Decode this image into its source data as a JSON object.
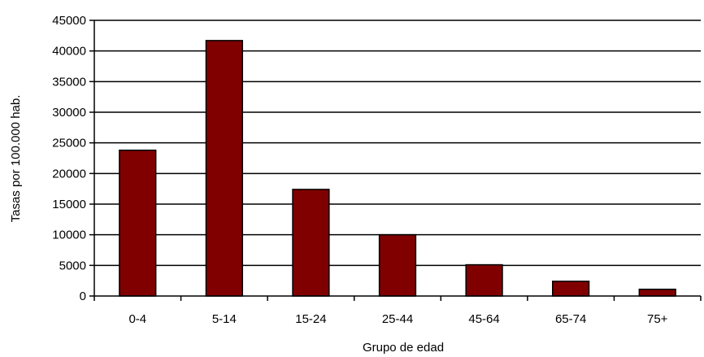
{
  "chart_data": {
    "type": "bar",
    "title": "",
    "xlabel": "Grupo de edad",
    "ylabel": "Tasas por 100.000 hab.",
    "categories": [
      "0-4",
      "5-14",
      "15-24",
      "25-44",
      "45-64",
      "65-74",
      "75+"
    ],
    "values": [
      23800,
      41700,
      17400,
      10000,
      5100,
      2400,
      1100
    ],
    "ylim": [
      0,
      45000
    ],
    "yticks": [
      0,
      5000,
      10000,
      15000,
      20000,
      25000,
      30000,
      35000,
      40000,
      45000
    ],
    "grid": "horizontal",
    "legend": "none",
    "bar_color": "#800000",
    "bar_edge_color": "#000000"
  }
}
